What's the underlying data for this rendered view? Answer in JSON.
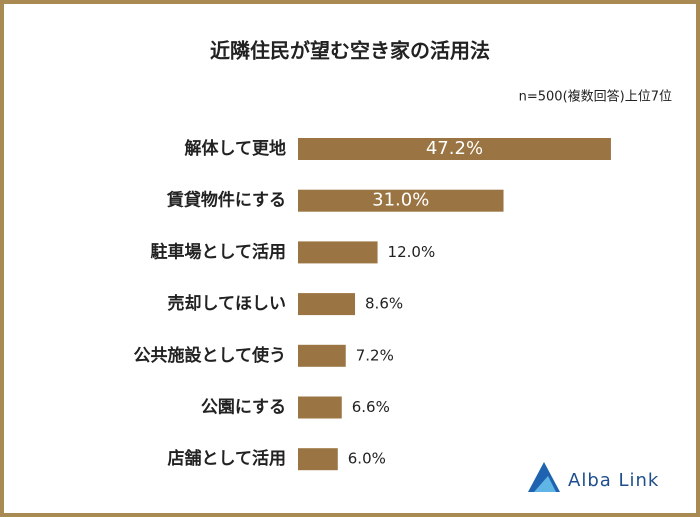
{
  "chart_data": {
    "type": "hbar",
    "title": "近隣住民が望む空き家の活用法",
    "subtitle": "n=500(複数回答)上位7位",
    "categories": [
      "解体して更地",
      "賃貸物件にする",
      "駐車場として活用",
      "売却してほしい",
      "公共施設として使う",
      "公園にする",
      "店舗として活用"
    ],
    "values": [
      47.2,
      31.0,
      12.0,
      8.6,
      7.2,
      6.6,
      6.0
    ],
    "value_labels": [
      "47.2%",
      "31.0%",
      "12.0%",
      "8.6%",
      "7.2%",
      "6.6%",
      "6.0%"
    ],
    "color": "#9a7442",
    "logo": "Alba Link"
  }
}
